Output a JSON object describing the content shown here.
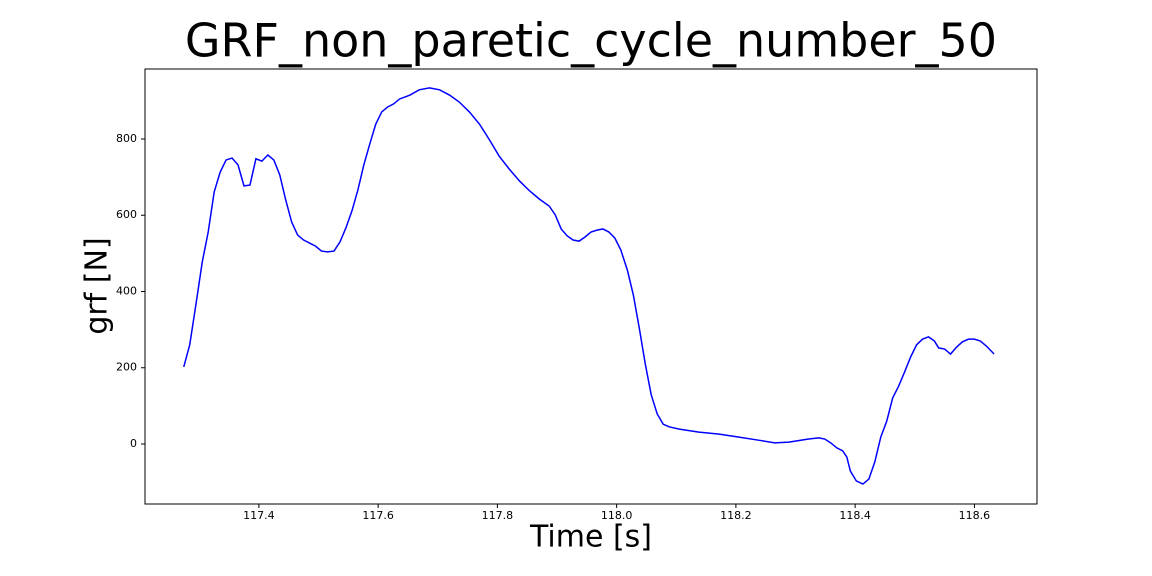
{
  "chart_data": {
    "type": "line",
    "title": "GRF_non_paretic_cycle_number_50",
    "x_label": "Time [s]",
    "y_label": "grf [N]",
    "x": [
      117.274,
      117.284,
      117.295,
      117.305,
      117.315,
      117.325,
      117.335,
      117.345,
      117.355,
      117.365,
      117.375,
      117.385,
      117.395,
      117.405,
      117.415,
      117.425,
      117.435,
      117.445,
      117.455,
      117.465,
      117.475,
      117.485,
      117.495,
      117.505,
      117.515,
      117.526,
      117.536,
      117.546,
      117.556,
      117.566,
      117.576,
      117.586,
      117.596,
      117.606,
      117.616,
      117.626,
      117.636,
      117.653,
      117.669,
      117.686,
      117.703,
      117.72,
      117.736,
      117.753,
      117.77,
      117.787,
      117.803,
      117.82,
      117.837,
      117.854,
      117.87,
      117.887,
      117.897,
      117.907,
      117.917,
      117.927,
      117.937,
      117.947,
      117.957,
      117.967,
      117.977,
      117.987,
      117.997,
      118.007,
      118.018,
      118.028,
      118.038,
      118.048,
      118.058,
      118.068,
      118.078,
      118.088,
      118.105,
      118.138,
      118.172,
      118.205,
      118.238,
      118.265,
      118.289,
      118.322,
      118.339,
      118.349,
      118.359,
      118.369,
      118.379,
      118.386,
      118.392,
      118.402,
      118.413,
      118.423,
      118.433,
      118.443,
      118.453,
      118.463,
      118.473,
      118.483,
      118.493,
      118.503,
      118.513,
      118.523,
      118.533,
      118.54,
      118.55,
      118.56,
      118.57,
      118.58,
      118.59,
      118.6,
      118.61,
      118.62,
      118.633
    ],
    "series": [
      {
        "color": "#0000ff",
        "values": [
          202,
          260,
          372,
          477,
          556,
          661,
          713,
          745,
          750,
          732,
          677,
          679,
          748,
          742,
          758,
          745,
          706,
          640,
          582,
          548,
          535,
          527,
          519,
          506,
          504,
          506,
          530,
          567,
          611,
          666,
          732,
          787,
          839,
          871,
          884,
          892,
          905,
          915,
          929,
          934,
          929,
          915,
          897,
          871,
          839,
          797,
          755,
          721,
          690,
          664,
          643,
          624,
          601,
          564,
          546,
          535,
          532,
          543,
          556,
          561,
          564,
          556,
          540,
          509,
          456,
          391,
          304,
          210,
          129,
          79,
          52,
          45,
          39,
          31,
          26,
          18,
          10,
          3,
          5,
          13,
          16,
          13,
          3,
          -10,
          -18,
          -34,
          -71,
          -97,
          -105,
          -92,
          -47,
          18,
          60,
          121,
          152,
          189,
          228,
          260,
          275,
          281,
          270,
          252,
          249,
          236,
          254,
          268,
          275,
          275,
          270,
          257,
          236
        ]
      }
    ],
    "xlim": [
      117.209,
      118.705
    ],
    "ylim": [
      -157.4,
      983.6
    ],
    "xticks": [
      117.4,
      117.6,
      117.8,
      {
        "value": 118,
        "label": "118.0"
      },
      118.2,
      118.4,
      118.6
    ],
    "yticks": [
      0,
      200,
      400,
      600,
      800
    ],
    "grid": false
  }
}
